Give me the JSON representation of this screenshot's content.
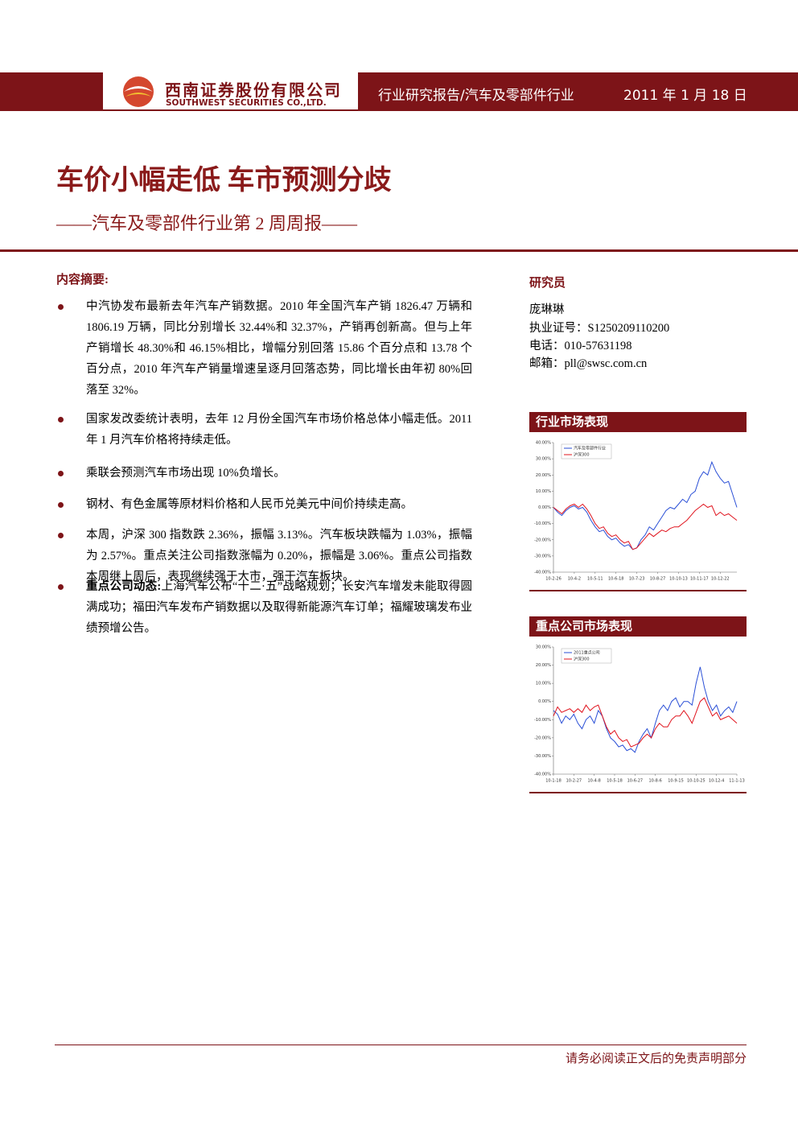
{
  "header": {
    "company_cn": "西南证券股份有限公司",
    "company_en": "SOUTHWEST SECURITIES CO.,LTD.",
    "report_type": "行业研究报告/汽车及零部件行业",
    "date": "2011 年 1 月 18 日"
  },
  "title": "车价小幅走低 车市预测分歧",
  "subtitle": "——汽车及零部件行业第 2 周周报——",
  "summary": {
    "heading": "内容摘要:",
    "bullets": [
      {
        "text": "中汽协发布最新去年汽车产销数据。2010 年全国汽车产销 1826.47 万辆和 1806.19 万辆，同比分别增长 32.44%和 32.37%，产销再创新高。但与上年产销增长 48.30%和 46.15%相比，增幅分别回落 15.86 个百分点和 13.78 个百分点，2010 年汽车产销量增速呈逐月回落态势，同比增长由年初 80%回落至 32%。"
      },
      {
        "text": "国家发改委统计表明，去年 12 月份全国汽车市场价格总体小幅走低。2011 年 1 月汽车价格将持续走低。"
      },
      {
        "text": "乘联会预测汽车市场出现 10%负增长。"
      },
      {
        "text": "钢材、有色金属等原材料价格和人民币兑美元中间价持续走高。"
      },
      {
        "text": "本周，沪深 300 指数跌 2.36%，振幅 3.13%。汽车板块跌幅为 1.03%，振幅为 2.57%。重点关注公司指数涨幅为 0.20%，振幅是 3.06%。重点公司指数本周继上周后，表现继续强于大市，强于汽车板块。"
      },
      {
        "lead": "重点公司动态:",
        "text": "上海汽车公布“十二·五”战略规划；长安汽车增发未能取得圆满成功；福田汽车发布产销数据以及取得新能源汽车订单；福耀玻璃发布业绩预增公告。"
      }
    ]
  },
  "analyst": {
    "heading": "研究员",
    "name": "庞琳琳",
    "license": "执业证号：S1250209110200",
    "phone": "电话：010-57631198",
    "email": "邮箱：pll@swsc.com.cn"
  },
  "chart_data": [
    {
      "type": "line",
      "title": "行业市场表现",
      "categories": [
        "10-2-26",
        null,
        null,
        null,
        null,
        "10-4-2",
        null,
        null,
        null,
        null,
        "10-5-11",
        null,
        null,
        null,
        null,
        "10-6-18",
        null,
        null,
        null,
        null,
        "10-7-23",
        null,
        null,
        null,
        null,
        "10-8-27",
        null,
        null,
        null,
        null,
        "10-10-13",
        null,
        null,
        null,
        null,
        "10-11-17",
        null,
        null,
        null,
        null,
        "10-12-22",
        null,
        null,
        null,
        null
      ],
      "series": [
        {
          "name": "汽车及零部件行业",
          "color": "#2a4fd6",
          "values": [
            0,
            -3,
            -5,
            -2,
            0,
            1,
            -1,
            0,
            -3,
            -8,
            -12,
            -15,
            -14,
            -18,
            -20,
            -19,
            -22,
            -24,
            -23,
            -26,
            -25,
            -20,
            -17,
            -12,
            -14,
            -10,
            -6,
            -2,
            0,
            -1,
            2,
            5,
            3,
            8,
            10,
            18,
            22,
            20,
            28,
            22,
            18,
            15,
            16,
            8,
            0
          ]
        },
        {
          "name": "沪深300",
          "color": "#e0141e",
          "values": [
            0,
            -2,
            -4,
            -1,
            1,
            2,
            0,
            2,
            -1,
            -5,
            -10,
            -13,
            -12,
            -16,
            -18,
            -17,
            -20,
            -22,
            -21,
            -26,
            -25,
            -22,
            -19,
            -16,
            -18,
            -16,
            -14,
            -15,
            -13,
            -12,
            -12,
            -10,
            -8,
            -5,
            -2,
            0,
            2,
            0,
            1,
            -5,
            -3,
            -5,
            -4,
            -6,
            -8
          ]
        }
      ],
      "ylim": [
        -40,
        40
      ],
      "yticks": [
        {
          "value": 40,
          "label": "40.00%"
        },
        {
          "value": 30,
          "label": "30.00%"
        },
        {
          "value": 20,
          "label": "20.00%"
        },
        {
          "value": 10,
          "label": "10.00%"
        },
        {
          "value": 0,
          "label": "0.00%"
        },
        {
          "value": -10,
          "label": "-10.00%"
        },
        {
          "value": -20,
          "label": "-20.00%"
        },
        {
          "value": -30,
          "label": "-30.00%"
        },
        {
          "value": -40,
          "label": "-40.00%"
        }
      ],
      "grid": false
    },
    {
      "type": "line",
      "title": "重点公司市场表现",
      "categories": [
        "10-1-18",
        null,
        null,
        null,
        null,
        "10-2-27",
        null,
        null,
        null,
        null,
        "10-4-8",
        null,
        null,
        null,
        null,
        "10-5-18",
        null,
        null,
        null,
        null,
        "10-6-27",
        null,
        null,
        null,
        null,
        "10-8-6",
        null,
        null,
        null,
        null,
        "10-9-15",
        null,
        null,
        null,
        null,
        "10-10-25",
        null,
        null,
        null,
        null,
        "10-12-4",
        null,
        null,
        null,
        null,
        "11-1-13"
      ],
      "series": [
        {
          "name": "2011重点公司",
          "color": "#2a4fd6",
          "values": [
            -5,
            -7,
            -12,
            -8,
            -10,
            -7,
            -12,
            -15,
            -10,
            -8,
            -12,
            -5,
            -8,
            -15,
            -20,
            -22,
            -25,
            -24,
            -27,
            -26,
            -28,
            -22,
            -18,
            -15,
            -20,
            -12,
            -5,
            -2,
            -5,
            0,
            2,
            -3,
            0,
            0,
            -2,
            10,
            19,
            8,
            0,
            -5,
            -2,
            -8,
            -5,
            -3,
            -6,
            0
          ]
        },
        {
          "name": "沪深300",
          "color": "#e0141e",
          "values": [
            -8,
            -3,
            -6,
            -5,
            -4,
            -6,
            -4,
            -6,
            -2,
            -5,
            -3,
            -2,
            -8,
            -14,
            -18,
            -16,
            -20,
            -22,
            -21,
            -25,
            -24,
            -23,
            -20,
            -18,
            -20,
            -15,
            -12,
            -14,
            -14,
            -10,
            -8,
            -8,
            -5,
            -8,
            -12,
            -6,
            0,
            2,
            -3,
            -8,
            -6,
            -10,
            -9,
            -8,
            -10,
            -12
          ]
        }
      ],
      "ylim": [
        -40,
        30
      ],
      "yticks": [
        {
          "value": 30,
          "label": "30.00%"
        },
        {
          "value": 20,
          "label": "20.00%"
        },
        {
          "value": 10,
          "label": "10.00%"
        },
        {
          "value": 0,
          "label": "0.00%"
        },
        {
          "value": -10,
          "label": "-10.00%"
        },
        {
          "value": -20,
          "label": "-20.00%"
        },
        {
          "value": -30,
          "label": "-30.00%"
        },
        {
          "value": -40,
          "label": "-40.00%"
        }
      ],
      "grid": false
    }
  ],
  "footer": "请务必阅读正文后的免责声明部分"
}
